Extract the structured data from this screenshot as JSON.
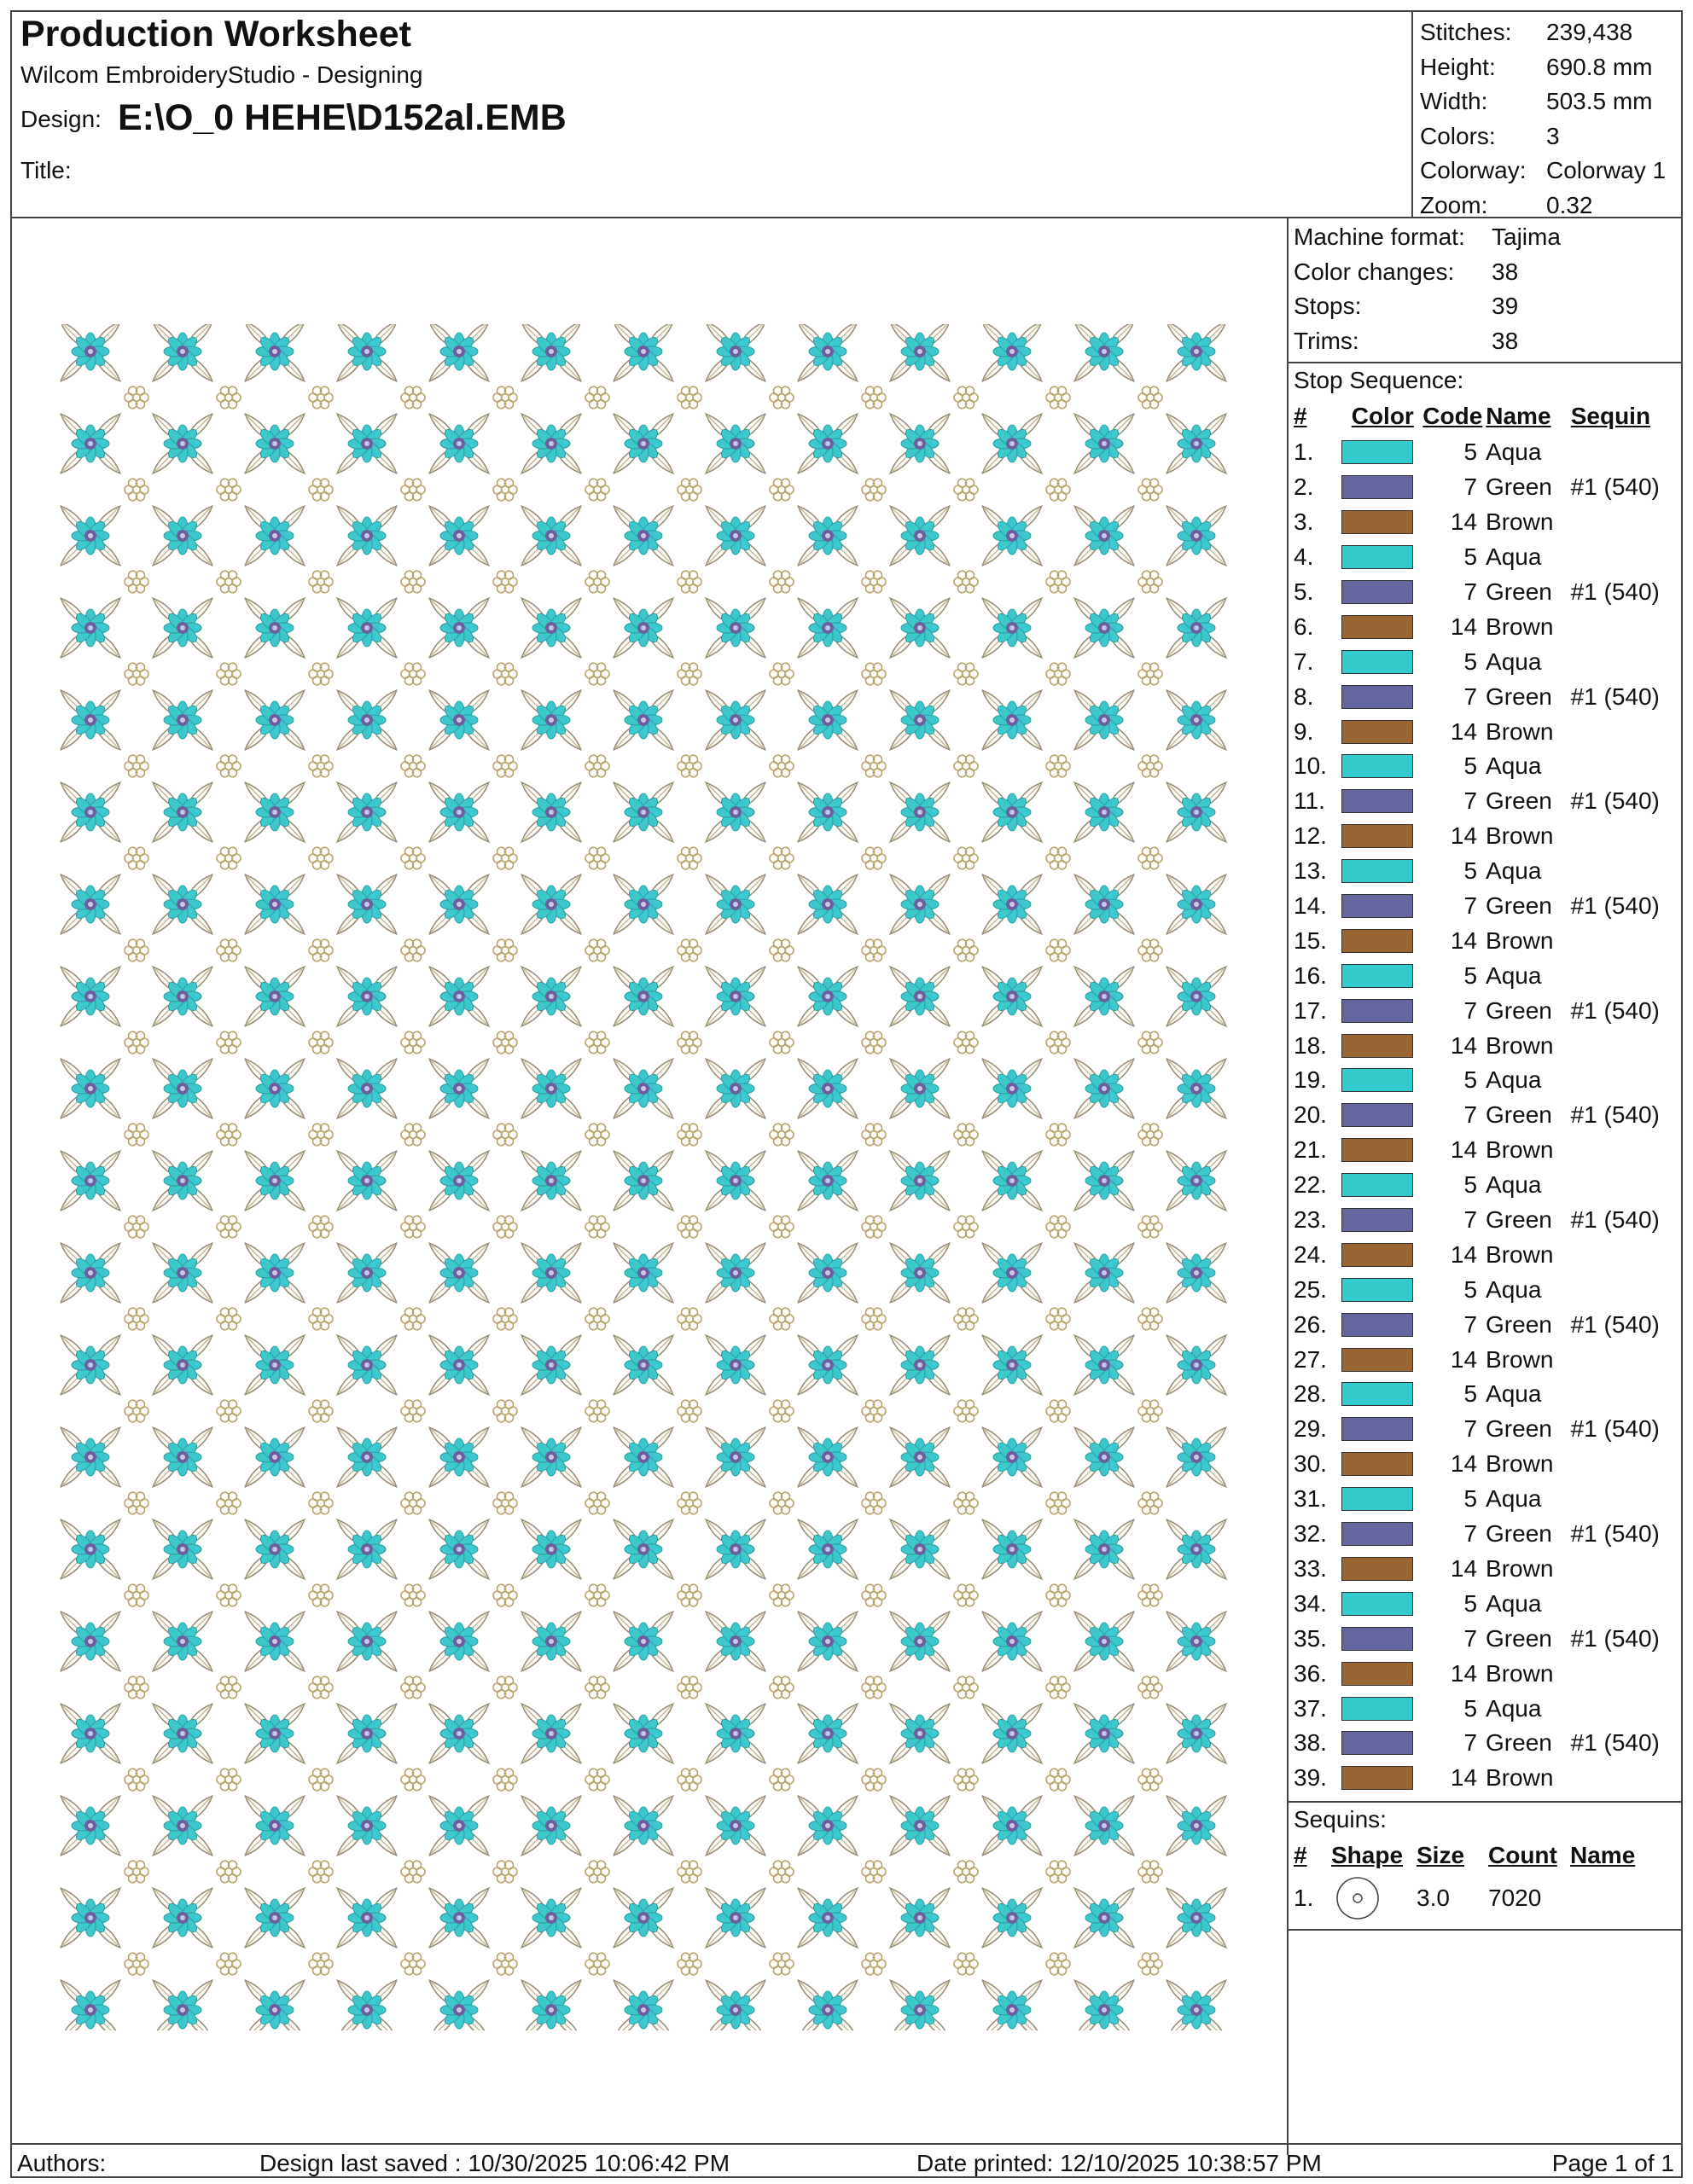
{
  "header": {
    "title": "Production Worksheet",
    "software": "Wilcom EmbroideryStudio - Designing",
    "design_label": "Design:",
    "design_path": "E:\\O_0 HEHE\\D152al.EMB",
    "title_label": "Title:"
  },
  "stats": [
    {
      "label": "Stitches:",
      "value": "239,438"
    },
    {
      "label": "Height:",
      "value": "690.8 mm"
    },
    {
      "label": "Width:",
      "value": "503.5 mm"
    },
    {
      "label": "Colors:",
      "value": "3"
    },
    {
      "label": "Colorway:",
      "value": "Colorway 1"
    },
    {
      "label": "Zoom:",
      "value": "0.32"
    }
  ],
  "machine": [
    {
      "label": "Machine format:",
      "value": "Tajima"
    },
    {
      "label": "Color changes:",
      "value": "38"
    },
    {
      "label": "Stops:",
      "value": "39"
    },
    {
      "label": "Trims:",
      "value": "38"
    }
  ],
  "stop_sequence": {
    "label": "Stop Sequence:",
    "headers": {
      "num": "#",
      "color": "Color",
      "code": "Code",
      "name": "Name",
      "sequin": "Sequin"
    },
    "colors": {
      "Aqua": "#33cccc",
      "Green": "#66669f",
      "Brown": "#996633"
    },
    "rows": [
      {
        "num": "1.",
        "code": "5",
        "name": "Aqua",
        "sequin": ""
      },
      {
        "num": "2.",
        "code": "7",
        "name": "Green",
        "sequin": "#1 (540)"
      },
      {
        "num": "3.",
        "code": "14",
        "name": "Brown",
        "sequin": ""
      },
      {
        "num": "4.",
        "code": "5",
        "name": "Aqua",
        "sequin": ""
      },
      {
        "num": "5.",
        "code": "7",
        "name": "Green",
        "sequin": "#1 (540)"
      },
      {
        "num": "6.",
        "code": "14",
        "name": "Brown",
        "sequin": ""
      },
      {
        "num": "7.",
        "code": "5",
        "name": "Aqua",
        "sequin": ""
      },
      {
        "num": "8.",
        "code": "7",
        "name": "Green",
        "sequin": "#1 (540)"
      },
      {
        "num": "9.",
        "code": "14",
        "name": "Brown",
        "sequin": ""
      },
      {
        "num": "10.",
        "code": "5",
        "name": "Aqua",
        "sequin": ""
      },
      {
        "num": "11.",
        "code": "7",
        "name": "Green",
        "sequin": "#1 (540)"
      },
      {
        "num": "12.",
        "code": "14",
        "name": "Brown",
        "sequin": ""
      },
      {
        "num": "13.",
        "code": "5",
        "name": "Aqua",
        "sequin": ""
      },
      {
        "num": "14.",
        "code": "7",
        "name": "Green",
        "sequin": "#1 (540)"
      },
      {
        "num": "15.",
        "code": "14",
        "name": "Brown",
        "sequin": ""
      },
      {
        "num": "16.",
        "code": "5",
        "name": "Aqua",
        "sequin": ""
      },
      {
        "num": "17.",
        "code": "7",
        "name": "Green",
        "sequin": "#1 (540)"
      },
      {
        "num": "18.",
        "code": "14",
        "name": "Brown",
        "sequin": ""
      },
      {
        "num": "19.",
        "code": "5",
        "name": "Aqua",
        "sequin": ""
      },
      {
        "num": "20.",
        "code": "7",
        "name": "Green",
        "sequin": "#1 (540)"
      },
      {
        "num": "21.",
        "code": "14",
        "name": "Brown",
        "sequin": ""
      },
      {
        "num": "22.",
        "code": "5",
        "name": "Aqua",
        "sequin": ""
      },
      {
        "num": "23.",
        "code": "7",
        "name": "Green",
        "sequin": "#1 (540)"
      },
      {
        "num": "24.",
        "code": "14",
        "name": "Brown",
        "sequin": ""
      },
      {
        "num": "25.",
        "code": "5",
        "name": "Aqua",
        "sequin": ""
      },
      {
        "num": "26.",
        "code": "7",
        "name": "Green",
        "sequin": "#1 (540)"
      },
      {
        "num": "27.",
        "code": "14",
        "name": "Brown",
        "sequin": ""
      },
      {
        "num": "28.",
        "code": "5",
        "name": "Aqua",
        "sequin": ""
      },
      {
        "num": "29.",
        "code": "7",
        "name": "Green",
        "sequin": "#1 (540)"
      },
      {
        "num": "30.",
        "code": "14",
        "name": "Brown",
        "sequin": ""
      },
      {
        "num": "31.",
        "code": "5",
        "name": "Aqua",
        "sequin": ""
      },
      {
        "num": "32.",
        "code": "7",
        "name": "Green",
        "sequin": "#1 (540)"
      },
      {
        "num": "33.",
        "code": "14",
        "name": "Brown",
        "sequin": ""
      },
      {
        "num": "34.",
        "code": "5",
        "name": "Aqua",
        "sequin": ""
      },
      {
        "num": "35.",
        "code": "7",
        "name": "Green",
        "sequin": "#1 (540)"
      },
      {
        "num": "36.",
        "code": "14",
        "name": "Brown",
        "sequin": ""
      },
      {
        "num": "37.",
        "code": "5",
        "name": "Aqua",
        "sequin": ""
      },
      {
        "num": "38.",
        "code": "7",
        "name": "Green",
        "sequin": "#1 (540)"
      },
      {
        "num": "39.",
        "code": "14",
        "name": "Brown",
        "sequin": ""
      }
    ]
  },
  "sequins": {
    "label": "Sequins:",
    "headers": {
      "num": "#",
      "shape": "Shape",
      "size": "Size",
      "count": "Count",
      "name": "Name"
    },
    "rows": [
      {
        "num": "1.",
        "shape_icon": "circle-sequin-icon",
        "size": "3.0",
        "count": "7020",
        "name": ""
      }
    ]
  },
  "footer": {
    "authors": "Authors:",
    "last_saved": "Design last saved : 10/30/2025 10:06:42 PM",
    "printed": "Date printed: 12/10/2025 10:38:57 PM",
    "page": "Page 1 of 1"
  },
  "preview": {
    "colors": {
      "aqua": "#3cc8cc",
      "purple": "#6a5fa0",
      "gold": "#b9a46a",
      "lace": "#9a8f78"
    }
  }
}
